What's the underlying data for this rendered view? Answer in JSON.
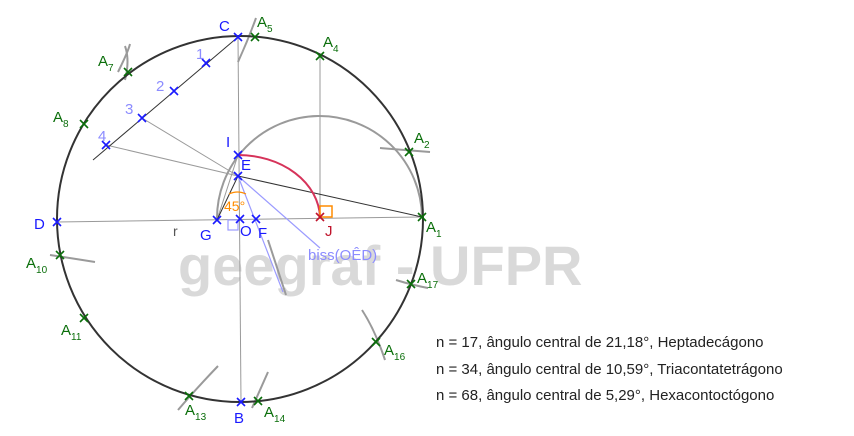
{
  "labels": {
    "C": "C",
    "A5": "A",
    "A5_sub": "5",
    "A4": "A",
    "A4_sub": "4",
    "A7": "A",
    "A7_sub": "7",
    "A8": "A",
    "A8_sub": "8",
    "A2": "A",
    "A2_sub": "2",
    "A1": "A",
    "A1_sub": "1",
    "A10": "A",
    "A10_sub": "10",
    "A17": "A",
    "A17_sub": "17",
    "A11": "A",
    "A11_sub": "11",
    "A16": "A",
    "A16_sub": "16",
    "A13": "A",
    "A13_sub": "13",
    "A14": "A",
    "A14_sub": "14",
    "I": "I",
    "E": "E",
    "D": "D",
    "G": "G",
    "O": "O",
    "F": "F",
    "J": "J",
    "B": "B",
    "r": "r",
    "n1": "1",
    "n2": "2",
    "n3": "3",
    "n4": "4",
    "angle": "45°",
    "bisector": "biss(OÊD)"
  },
  "watermark": "geegraf - UFPR",
  "info_lines": [
    "n = 17, ângulo central de 21,18°, Heptadecágono",
    "n = 34, ângulo central de 10,59°, Triacontatetrágono",
    "n = 68, ângulo central de 5,29°, Hexacontoctógono"
  ],
  "colors": {
    "circle": "#333333",
    "construction": "#9a9a9a",
    "blue_point": "#1a1aff",
    "green_point": "#0a6e0a",
    "red_arc": "#d6335a",
    "bisector": "#9b9bff",
    "orange": "#ff8c00"
  }
}
